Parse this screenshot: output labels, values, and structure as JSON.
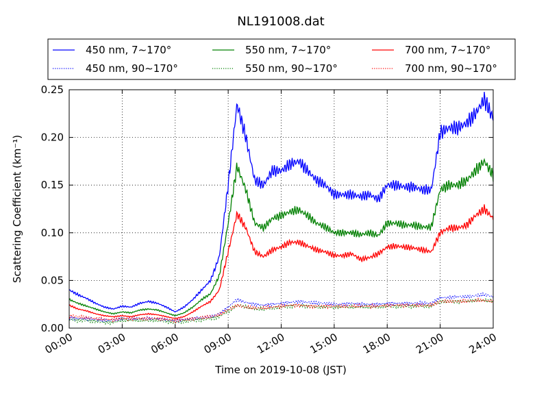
{
  "chart_data": {
    "type": "line",
    "title": "NL191008.dat",
    "xlabel": "Time on 2019-10-08 (JST)",
    "ylabel": "Scattering Coefficient (km⁻¹)",
    "x_ticks": [
      "00:00",
      "03:00",
      "06:00",
      "09:00",
      "12:00",
      "15:00",
      "18:00",
      "21:00",
      "24:00"
    ],
    "y_ticks": [
      "0.00",
      "0.05",
      "0.10",
      "0.15",
      "0.20",
      "0.25"
    ],
    "xlim": [
      "00:00",
      "24:00"
    ],
    "ylim": [
      0,
      0.25
    ],
    "grid": true,
    "legend_position": "top",
    "colors": {
      "450": "#0000ff",
      "550": "#008000",
      "700": "#ff0000"
    },
    "x": [
      "00:00",
      "00:30",
      "01:00",
      "01:30",
      "02:00",
      "02:30",
      "03:00",
      "03:30",
      "04:00",
      "04:30",
      "05:00",
      "05:30",
      "06:00",
      "06:30",
      "07:00",
      "07:30",
      "08:00",
      "08:30",
      "09:00",
      "09:30",
      "10:00",
      "10:30",
      "11:00",
      "11:30",
      "12:00",
      "12:30",
      "13:00",
      "13:30",
      "14:00",
      "14:30",
      "15:00",
      "15:30",
      "16:00",
      "16:30",
      "17:00",
      "17:30",
      "18:00",
      "18:30",
      "19:00",
      "19:30",
      "20:00",
      "20:30",
      "21:00",
      "21:30",
      "22:00",
      "22:30",
      "23:00",
      "23:30",
      "24:00"
    ],
    "series": [
      {
        "name": "450 nm, 7∼170°",
        "color": "#0000ff",
        "style": "solid",
        "values": [
          0.04,
          0.035,
          0.031,
          0.026,
          0.022,
          0.02,
          0.023,
          0.022,
          0.026,
          0.028,
          0.026,
          0.022,
          0.017,
          0.022,
          0.03,
          0.04,
          0.05,
          0.075,
          0.15,
          0.235,
          0.2,
          0.155,
          0.15,
          0.165,
          0.165,
          0.172,
          0.175,
          0.165,
          0.155,
          0.15,
          0.14,
          0.14,
          0.14,
          0.138,
          0.14,
          0.135,
          0.15,
          0.15,
          0.148,
          0.148,
          0.145,
          0.145,
          0.205,
          0.21,
          0.21,
          0.215,
          0.225,
          0.24,
          0.22
        ]
      },
      {
        "name": "450 nm, 90∼170°",
        "color": "#0000ff",
        "style": "dotted",
        "values": [
          0.011,
          0.01,
          0.01,
          0.009,
          0.008,
          0.008,
          0.01,
          0.01,
          0.01,
          0.01,
          0.01,
          0.009,
          0.008,
          0.009,
          0.01,
          0.011,
          0.012,
          0.015,
          0.022,
          0.03,
          0.027,
          0.025,
          0.024,
          0.025,
          0.026,
          0.027,
          0.028,
          0.027,
          0.026,
          0.026,
          0.025,
          0.025,
          0.026,
          0.025,
          0.025,
          0.025,
          0.026,
          0.026,
          0.026,
          0.026,
          0.026,
          0.026,
          0.032,
          0.032,
          0.033,
          0.033,
          0.034,
          0.035,
          0.033
        ]
      },
      {
        "name": "550 nm, 7∼170°",
        "color": "#008000",
        "style": "solid",
        "values": [
          0.03,
          0.026,
          0.023,
          0.02,
          0.017,
          0.015,
          0.017,
          0.016,
          0.019,
          0.02,
          0.019,
          0.016,
          0.013,
          0.016,
          0.022,
          0.03,
          0.036,
          0.055,
          0.11,
          0.17,
          0.145,
          0.11,
          0.105,
          0.115,
          0.118,
          0.122,
          0.124,
          0.118,
          0.11,
          0.106,
          0.1,
          0.1,
          0.1,
          0.098,
          0.1,
          0.097,
          0.11,
          0.11,
          0.108,
          0.108,
          0.106,
          0.106,
          0.145,
          0.15,
          0.15,
          0.155,
          0.165,
          0.175,
          0.16
        ]
      },
      {
        "name": "550 nm, 90∼170°",
        "color": "#008000",
        "style": "dotted",
        "values": [
          0.009,
          0.008,
          0.008,
          0.007,
          0.006,
          0.006,
          0.008,
          0.008,
          0.008,
          0.008,
          0.008,
          0.007,
          0.006,
          0.007,
          0.008,
          0.009,
          0.01,
          0.012,
          0.018,
          0.024,
          0.022,
          0.02,
          0.02,
          0.021,
          0.022,
          0.023,
          0.024,
          0.023,
          0.022,
          0.022,
          0.022,
          0.022,
          0.022,
          0.022,
          0.022,
          0.022,
          0.023,
          0.023,
          0.023,
          0.023,
          0.023,
          0.023,
          0.028,
          0.028,
          0.028,
          0.028,
          0.029,
          0.029,
          0.028
        ]
      },
      {
        "name": "700 nm, 7∼170°",
        "color": "#ff0000",
        "style": "solid",
        "values": [
          0.024,
          0.02,
          0.018,
          0.015,
          0.013,
          0.012,
          0.013,
          0.012,
          0.014,
          0.015,
          0.014,
          0.012,
          0.01,
          0.012,
          0.017,
          0.023,
          0.028,
          0.04,
          0.08,
          0.12,
          0.105,
          0.08,
          0.075,
          0.082,
          0.085,
          0.09,
          0.09,
          0.086,
          0.082,
          0.08,
          0.076,
          0.076,
          0.078,
          0.072,
          0.074,
          0.078,
          0.085,
          0.086,
          0.085,
          0.084,
          0.082,
          0.08,
          0.1,
          0.105,
          0.105,
          0.108,
          0.118,
          0.125,
          0.115
        ]
      },
      {
        "name": "700 nm, 90∼170°",
        "color": "#ff0000",
        "style": "dotted",
        "values": [
          0.013,
          0.012,
          0.011,
          0.01,
          0.009,
          0.009,
          0.01,
          0.01,
          0.01,
          0.01,
          0.01,
          0.009,
          0.008,
          0.009,
          0.01,
          0.011,
          0.012,
          0.014,
          0.019,
          0.024,
          0.022,
          0.021,
          0.021,
          0.022,
          0.023,
          0.024,
          0.024,
          0.023,
          0.023,
          0.023,
          0.023,
          0.023,
          0.023,
          0.023,
          0.023,
          0.023,
          0.024,
          0.024,
          0.024,
          0.024,
          0.024,
          0.024,
          0.028,
          0.028,
          0.028,
          0.028,
          0.029,
          0.029,
          0.028
        ]
      }
    ]
  }
}
